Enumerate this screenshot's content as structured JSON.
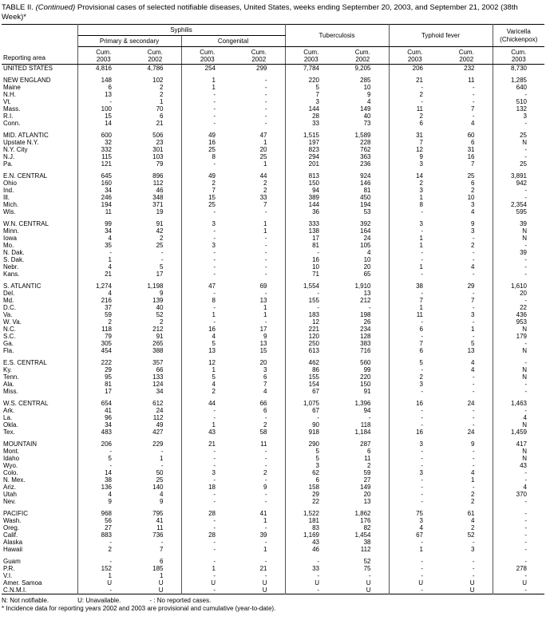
{
  "title": {
    "part1": "TABLE II.",
    "part2": "(Continued)",
    "part3": "Provisional cases of selected notifiable diseases, United States, weeks ending September 20, 2003, and September 21, 2002 (38th Week)*"
  },
  "header": {
    "reporting_area": "Reporting area",
    "groups": {
      "syphilis": "Syphilis",
      "syphilis_primary": "Primary & secondary",
      "syphilis_congenital": "Congenital",
      "tuberculosis": "Tuberculosis",
      "typhoid": "Typhoid fever",
      "varicella_line1": "Varicella",
      "varicella_line2": "(Chickenpox)"
    },
    "cum_label": "Cum.",
    "years": [
      "2003",
      "2002",
      "2003",
      "2002",
      "2003",
      "2002",
      "2003",
      "2002",
      "2003"
    ]
  },
  "rows": [
    {
      "area": "UNITED STATES",
      "kind": "total",
      "values": [
        "4,816",
        "4,786",
        "254",
        "299",
        "7,784",
        "9,205",
        "206",
        "232",
        "8,730"
      ]
    },
    {
      "area": "NEW ENGLAND",
      "kind": "region",
      "gap": true,
      "values": [
        "148",
        "102",
        "1",
        "-",
        "220",
        "285",
        "21",
        "11",
        "1,285"
      ]
    },
    {
      "area": "Maine",
      "kind": "state",
      "values": [
        "6",
        "2",
        "1",
        "-",
        "5",
        "10",
        "-",
        "-",
        "640"
      ]
    },
    {
      "area": "N.H.",
      "kind": "state",
      "values": [
        "13",
        "2",
        "-",
        "-",
        "7",
        "9",
        "2",
        "-",
        "-"
      ]
    },
    {
      "area": "Vt.",
      "kind": "state",
      "values": [
        "-",
        "1",
        "-",
        "-",
        "3",
        "4",
        "-",
        "-",
        "510"
      ]
    },
    {
      "area": "Mass.",
      "kind": "state",
      "values": [
        "100",
        "70",
        "-",
        "-",
        "144",
        "149",
        "11",
        "7",
        "132"
      ]
    },
    {
      "area": "R.I.",
      "kind": "state",
      "values": [
        "15",
        "6",
        "-",
        "-",
        "28",
        "40",
        "2",
        "-",
        "3"
      ]
    },
    {
      "area": "Conn.",
      "kind": "state",
      "values": [
        "14",
        "21",
        "-",
        "-",
        "33",
        "73",
        "6",
        "4",
        "-"
      ]
    },
    {
      "area": "MID. ATLANTIC",
      "kind": "region",
      "gap": true,
      "values": [
        "600",
        "506",
        "49",
        "47",
        "1,515",
        "1,589",
        "31",
        "60",
        "25"
      ]
    },
    {
      "area": "Upstate N.Y.",
      "kind": "state",
      "values": [
        "32",
        "23",
        "16",
        "1",
        "197",
        "228",
        "7",
        "6",
        "N"
      ]
    },
    {
      "area": "N.Y. City",
      "kind": "state",
      "values": [
        "332",
        "301",
        "25",
        "20",
        "823",
        "762",
        "12",
        "31",
        "-"
      ]
    },
    {
      "area": "N.J.",
      "kind": "state",
      "values": [
        "115",
        "103",
        "8",
        "25",
        "294",
        "363",
        "9",
        "16",
        "-"
      ]
    },
    {
      "area": "Pa.",
      "kind": "state",
      "values": [
        "121",
        "79",
        "-",
        "1",
        "201",
        "236",
        "3",
        "7",
        "25"
      ]
    },
    {
      "area": "E.N. CENTRAL",
      "kind": "region",
      "gap": true,
      "values": [
        "645",
        "896",
        "49",
        "44",
        "813",
        "924",
        "14",
        "25",
        "3,891"
      ]
    },
    {
      "area": "Ohio",
      "kind": "state",
      "values": [
        "160",
        "112",
        "2",
        "2",
        "150",
        "146",
        "2",
        "6",
        "942"
      ]
    },
    {
      "area": "Ind.",
      "kind": "state",
      "values": [
        "34",
        "46",
        "7",
        "2",
        "94",
        "81",
        "3",
        "2",
        "-"
      ]
    },
    {
      "area": "Ill.",
      "kind": "state",
      "values": [
        "246",
        "348",
        "15",
        "33",
        "389",
        "450",
        "1",
        "10",
        "-"
      ]
    },
    {
      "area": "Mich.",
      "kind": "state",
      "values": [
        "194",
        "371",
        "25",
        "7",
        "144",
        "194",
        "8",
        "3",
        "2,354"
      ]
    },
    {
      "area": "Wis.",
      "kind": "state",
      "values": [
        "11",
        "19",
        "-",
        "-",
        "36",
        "53",
        "-",
        "4",
        "595"
      ]
    },
    {
      "area": "W.N. CENTRAL",
      "kind": "region",
      "gap": true,
      "values": [
        "99",
        "91",
        "3",
        "1",
        "333",
        "392",
        "3",
        "9",
        "39"
      ]
    },
    {
      "area": "Minn.",
      "kind": "state",
      "values": [
        "34",
        "42",
        "-",
        "1",
        "138",
        "164",
        "-",
        "3",
        "N"
      ]
    },
    {
      "area": "Iowa",
      "kind": "state",
      "values": [
        "4",
        "2",
        "-",
        "-",
        "17",
        "24",
        "1",
        "-",
        "N"
      ]
    },
    {
      "area": "Mo.",
      "kind": "state",
      "values": [
        "35",
        "25",
        "3",
        "-",
        "81",
        "105",
        "1",
        "2",
        "-"
      ]
    },
    {
      "area": "N. Dak.",
      "kind": "state",
      "values": [
        "-",
        "-",
        "-",
        "-",
        "-",
        "4",
        "-",
        "-",
        "39"
      ]
    },
    {
      "area": "S. Dak.",
      "kind": "state",
      "values": [
        "1",
        "-",
        "-",
        "-",
        "16",
        "10",
        "-",
        "-",
        "-"
      ]
    },
    {
      "area": "Nebr.",
      "kind": "state",
      "values": [
        "4",
        "5",
        "-",
        "-",
        "10",
        "20",
        "1",
        "4",
        "-"
      ]
    },
    {
      "area": "Kans.",
      "kind": "state",
      "values": [
        "21",
        "17",
        "-",
        "-",
        "71",
        "65",
        "-",
        "-",
        "-"
      ]
    },
    {
      "area": "S. ATLANTIC",
      "kind": "region",
      "gap": true,
      "values": [
        "1,274",
        "1,198",
        "47",
        "69",
        "1,554",
        "1,910",
        "38",
        "29",
        "1,610"
      ]
    },
    {
      "area": "Del.",
      "kind": "state",
      "values": [
        "4",
        "9",
        "-",
        "-",
        "-",
        "13",
        "-",
        "-",
        "20"
      ]
    },
    {
      "area": "Md.",
      "kind": "state",
      "values": [
        "216",
        "139",
        "8",
        "13",
        "155",
        "212",
        "7",
        "7",
        "-"
      ]
    },
    {
      "area": "D.C.",
      "kind": "state",
      "values": [
        "37",
        "40",
        "-",
        "1",
        "-",
        "-",
        "1",
        "-",
        "22"
      ]
    },
    {
      "area": "Va.",
      "kind": "state",
      "values": [
        "59",
        "52",
        "1",
        "1",
        "183",
        "198",
        "11",
        "3",
        "436"
      ]
    },
    {
      "area": "W. Va.",
      "kind": "state",
      "values": [
        "2",
        "2",
        "-",
        "-",
        "12",
        "26",
        "-",
        "-",
        "953"
      ]
    },
    {
      "area": "N.C.",
      "kind": "state",
      "values": [
        "118",
        "212",
        "16",
        "17",
        "221",
        "234",
        "6",
        "1",
        "N"
      ]
    },
    {
      "area": "S.C.",
      "kind": "state",
      "values": [
        "79",
        "91",
        "4",
        "9",
        "120",
        "128",
        "-",
        "-",
        "179"
      ]
    },
    {
      "area": "Ga.",
      "kind": "state",
      "values": [
        "305",
        "265",
        "5",
        "13",
        "250",
        "383",
        "7",
        "5",
        "-"
      ]
    },
    {
      "area": "Fla.",
      "kind": "state",
      "values": [
        "454",
        "388",
        "13",
        "15",
        "613",
        "716",
        "6",
        "13",
        "N"
      ]
    },
    {
      "area": "E.S. CENTRAL",
      "kind": "region",
      "gap": true,
      "values": [
        "222",
        "357",
        "12",
        "20",
        "462",
        "560",
        "5",
        "4",
        "-"
      ]
    },
    {
      "area": "Ky.",
      "kind": "state",
      "values": [
        "29",
        "66",
        "1",
        "3",
        "86",
        "99",
        "-",
        "4",
        "N"
      ]
    },
    {
      "area": "Tenn.",
      "kind": "state",
      "values": [
        "95",
        "133",
        "5",
        "6",
        "155",
        "220",
        "2",
        "-",
        "N"
      ]
    },
    {
      "area": "Ala.",
      "kind": "state",
      "values": [
        "81",
        "124",
        "4",
        "7",
        "154",
        "150",
        "3",
        "-",
        "-"
      ]
    },
    {
      "area": "Miss.",
      "kind": "state",
      "values": [
        "17",
        "34",
        "2",
        "4",
        "67",
        "91",
        "-",
        "-",
        "-"
      ]
    },
    {
      "area": "W.S. CENTRAL",
      "kind": "region",
      "gap": true,
      "values": [
        "654",
        "612",
        "44",
        "66",
        "1,075",
        "1,396",
        "16",
        "24",
        "1,463"
      ]
    },
    {
      "area": "Ark.",
      "kind": "state",
      "values": [
        "41",
        "24",
        "-",
        "6",
        "67",
        "94",
        "-",
        "-",
        "-"
      ]
    },
    {
      "area": "La.",
      "kind": "state",
      "values": [
        "96",
        "112",
        "-",
        "-",
        "-",
        "-",
        "-",
        "-",
        "4"
      ]
    },
    {
      "area": "Okla.",
      "kind": "state",
      "values": [
        "34",
        "49",
        "1",
        "2",
        "90",
        "118",
        "-",
        "-",
        "N"
      ]
    },
    {
      "area": "Tex.",
      "kind": "state",
      "values": [
        "483",
        "427",
        "43",
        "58",
        "918",
        "1,184",
        "16",
        "24",
        "1,459"
      ]
    },
    {
      "area": "MOUNTAIN",
      "kind": "region",
      "gap": true,
      "values": [
        "206",
        "229",
        "21",
        "11",
        "290",
        "287",
        "3",
        "9",
        "417"
      ]
    },
    {
      "area": "Mont.",
      "kind": "state",
      "values": [
        "-",
        "-",
        "-",
        "-",
        "5",
        "6",
        "-",
        "-",
        "N"
      ]
    },
    {
      "area": "Idaho",
      "kind": "state",
      "values": [
        "5",
        "1",
        "-",
        "-",
        "5",
        "11",
        "-",
        "-",
        "N"
      ]
    },
    {
      "area": "Wyo.",
      "kind": "state",
      "values": [
        "-",
        "-",
        "-",
        "-",
        "3",
        "2",
        "-",
        "-",
        "43"
      ]
    },
    {
      "area": "Colo.",
      "kind": "state",
      "values": [
        "14",
        "50",
        "3",
        "2",
        "62",
        "59",
        "3",
        "4",
        "-"
      ]
    },
    {
      "area": "N. Mex.",
      "kind": "state",
      "values": [
        "38",
        "25",
        "-",
        "-",
        "6",
        "27",
        "-",
        "1",
        "-"
      ]
    },
    {
      "area": "Ariz.",
      "kind": "state",
      "values": [
        "136",
        "140",
        "18",
        "9",
        "158",
        "149",
        "-",
        "-",
        "4"
      ]
    },
    {
      "area": "Utah",
      "kind": "state",
      "values": [
        "4",
        "4",
        "-",
        "-",
        "29",
        "20",
        "-",
        "2",
        "370"
      ]
    },
    {
      "area": "Nev.",
      "kind": "state",
      "values": [
        "9",
        "9",
        "-",
        "-",
        "22",
        "13",
        "-",
        "2",
        "-"
      ]
    },
    {
      "area": "PACIFIC",
      "kind": "region",
      "gap": true,
      "values": [
        "968",
        "795",
        "28",
        "41",
        "1,522",
        "1,862",
        "75",
        "61",
        "-"
      ]
    },
    {
      "area": "Wash.",
      "kind": "state",
      "values": [
        "56",
        "41",
        "-",
        "1",
        "181",
        "176",
        "3",
        "4",
        "-"
      ]
    },
    {
      "area": "Oreg.",
      "kind": "state",
      "values": [
        "27",
        "11",
        "-",
        "-",
        "83",
        "82",
        "4",
        "2",
        "-"
      ]
    },
    {
      "area": "Calif.",
      "kind": "state",
      "values": [
        "883",
        "736",
        "28",
        "39",
        "1,169",
        "1,454",
        "67",
        "52",
        "-"
      ]
    },
    {
      "area": "Alaska",
      "kind": "state",
      "values": [
        "-",
        "-",
        "-",
        "-",
        "43",
        "38",
        "-",
        "-",
        "-"
      ]
    },
    {
      "area": "Hawaii",
      "kind": "state",
      "values": [
        "2",
        "7",
        "-",
        "1",
        "46",
        "112",
        "1",
        "3",
        "-"
      ]
    },
    {
      "area": "Guam",
      "kind": "state",
      "gap": true,
      "values": [
        "-",
        "6",
        "-",
        "-",
        "-",
        "52",
        "-",
        "-",
        "-"
      ]
    },
    {
      "area": "P.R.",
      "kind": "state",
      "values": [
        "152",
        "185",
        "1",
        "21",
        "33",
        "75",
        "-",
        "-",
        "278"
      ]
    },
    {
      "area": "V.I.",
      "kind": "state",
      "values": [
        "1",
        "1",
        "-",
        "-",
        "-",
        "-",
        "-",
        "-",
        "-"
      ]
    },
    {
      "area": "Amer. Samoa",
      "kind": "state",
      "values": [
        "U",
        "U",
        "U",
        "U",
        "U",
        "U",
        "U",
        "U",
        "U"
      ]
    },
    {
      "area": "C.N.M.I.",
      "kind": "state",
      "values": [
        "-",
        "U",
        "-",
        "U",
        "-",
        "U",
        "-",
        "U",
        "-"
      ]
    }
  ],
  "footnotes": {
    "legend": [
      "N: Not notifiable.",
      "U: Unavailable.",
      "- : No reported cases."
    ],
    "note": "* Incidence data for reporting years 2002 and 2003 are provisional and cumulative (year-to-date)."
  }
}
